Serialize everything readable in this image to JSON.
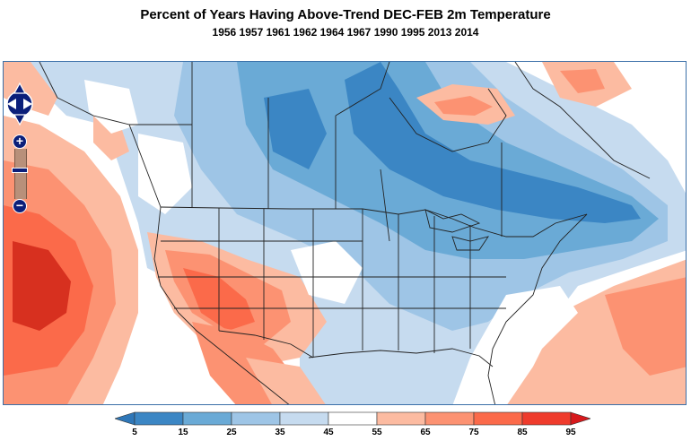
{
  "title": "Percent of Years Having Above-Trend DEC-FEB 2m Temperature",
  "subtitle": "1956 1957 1961 1962 1964 1967 1990 1995 2013 2014",
  "colorbar": {
    "ticks": [
      "5",
      "15",
      "25",
      "35",
      "45",
      "55",
      "65",
      "75",
      "85",
      "95"
    ],
    "colors": [
      "#3b86c4",
      "#6aaad6",
      "#9ec5e6",
      "#c6dbef",
      "#ffffff",
      "#fcbba1",
      "#fc9272",
      "#fb6a4a",
      "#ef3b2c"
    ],
    "low_arrow": "#2f77b8",
    "high_arrow": "#d7191c"
  },
  "map_colors": {
    "blue_dark": "#3b86c4",
    "blue_mid": "#6aaad6",
    "blue_light": "#9ec5e6",
    "blue_pale": "#c6dbef",
    "red_pale": "#fcbba1",
    "red_light": "#fc9272",
    "red_mid": "#fb6a4a",
    "red_dark": "#d7301f"
  },
  "controls": {
    "pan_icon": "pan-arrows-icon",
    "zoom_in_label": "+",
    "zoom_out_label": "−"
  }
}
